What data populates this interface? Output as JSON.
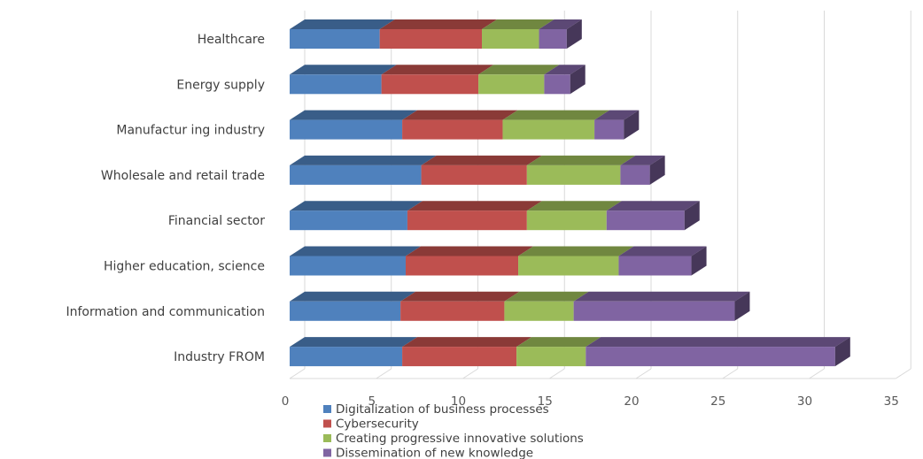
{
  "chart_data": {
    "type": "bar",
    "orientation": "horizontal",
    "stacked": true,
    "style": "3d",
    "categories": [
      "Healthcare",
      "Energy supply",
      "Manufactur ing industry",
      "Wholesale and retail trade",
      "Financial sector",
      "Higher education, science",
      "Information and communication",
      "Industry FROM"
    ],
    "series": [
      {
        "name": "Digitalization of business processes",
        "color": "#4f81bd",
        "values": [
          5.2,
          5.3,
          6.5,
          7.6,
          6.8,
          6.7,
          6.4,
          6.5
        ]
      },
      {
        "name": "Cybersecurity",
        "color": "#c0504d",
        "values": [
          5.9,
          5.6,
          5.8,
          6.1,
          6.9,
          6.5,
          6.0,
          6.6
        ]
      },
      {
        "name": "Creating progressive innovative solutions",
        "color": "#9bbb59",
        "values": [
          3.3,
          3.8,
          5.3,
          5.4,
          4.6,
          5.8,
          4.0,
          4.0
        ]
      },
      {
        "name": "Dissemination of new knowledge",
        "color": "#8064a2",
        "values": [
          1.6,
          1.5,
          1.7,
          1.7,
          4.5,
          4.2,
          9.3,
          14.4
        ]
      }
    ],
    "xticks": [
      "0",
      "5",
      "10",
      "15",
      "20",
      "25",
      "30",
      "35"
    ],
    "xlim": [
      0,
      35
    ],
    "grid": true,
    "legend_position": "bottom"
  }
}
